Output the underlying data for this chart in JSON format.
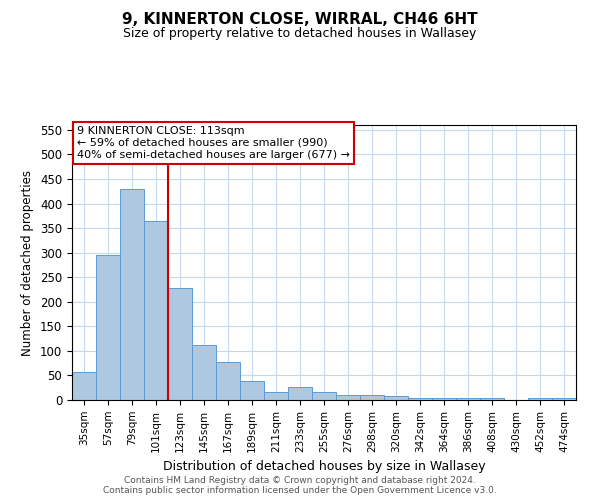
{
  "title": "9, KINNERTON CLOSE, WIRRAL, CH46 6HT",
  "subtitle": "Size of property relative to detached houses in Wallasey",
  "xlabel": "Distribution of detached houses by size in Wallasey",
  "ylabel": "Number of detached properties",
  "categories": [
    "35sqm",
    "57sqm",
    "79sqm",
    "101sqm",
    "123sqm",
    "145sqm",
    "167sqm",
    "189sqm",
    "211sqm",
    "233sqm",
    "255sqm",
    "276sqm",
    "298sqm",
    "320sqm",
    "342sqm",
    "364sqm",
    "386sqm",
    "408sqm",
    "430sqm",
    "452sqm",
    "474sqm"
  ],
  "values": [
    57,
    295,
    430,
    365,
    228,
    113,
    77,
    38,
    17,
    27,
    16,
    10,
    11,
    9,
    5,
    5,
    5,
    5,
    0,
    4,
    4
  ],
  "bar_color": "#adc8e0",
  "bar_edge_color": "#5b9bd5",
  "vline_color": "#cc0000",
  "vline_pos": 3.5,
  "annotation_text": "9 KINNERTON CLOSE: 113sqm\n← 59% of detached houses are smaller (990)\n40% of semi-detached houses are larger (677) →",
  "annotation_box_color": "#ffffff",
  "annotation_box_edge": "#cc0000",
  "ylim": [
    0,
    560
  ],
  "yticks": [
    0,
    50,
    100,
    150,
    200,
    250,
    300,
    350,
    400,
    450,
    500,
    550
  ],
  "footer": "Contains HM Land Registry data © Crown copyright and database right 2024.\nContains public sector information licensed under the Open Government Licence v3.0.",
  "background_color": "#ffffff",
  "grid_color": "#c8d8ec"
}
